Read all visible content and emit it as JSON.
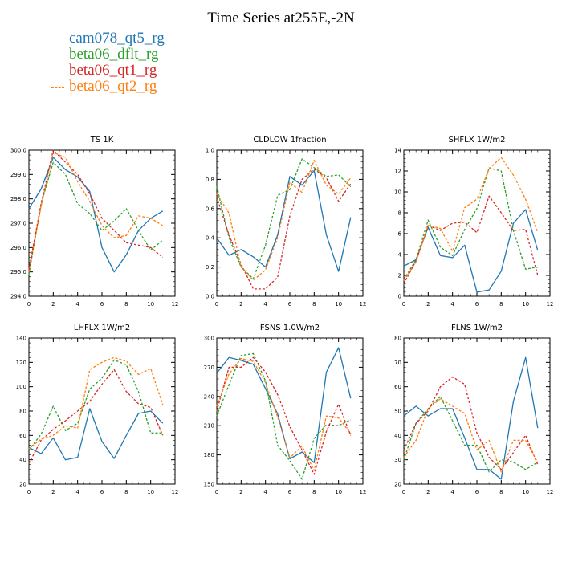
{
  "title": "Time Series at255E,-2N",
  "legend": [
    {
      "label": "cam078_qt5_rg",
      "color": "#1f77b4",
      "dashed": false
    },
    {
      "label": "beta06_dflt_rg",
      "color": "#2ca02c",
      "dashed": true
    },
    {
      "label": "beta06_qt1_rg",
      "color": "#d62728",
      "dashed": true
    },
    {
      "label": "beta06_qt2_rg",
      "color": "#ff7f0e",
      "dashed": true
    }
  ],
  "chart_data": [
    {
      "type": "line",
      "title": "TS   1K",
      "x": [
        0,
        1,
        2,
        3,
        4,
        5,
        6,
        7,
        8,
        9,
        10,
        11
      ],
      "xlim": [
        0,
        12
      ],
      "xticks": [
        0,
        2,
        4,
        6,
        8,
        10,
        12
      ],
      "ylim": [
        294.0,
        300.0
      ],
      "yticks": [
        "294.0",
        "295.0",
        "296.0",
        "297.0",
        "298.0",
        "299.0",
        "300.0"
      ],
      "series": [
        {
          "name": "cam078_qt5_rg",
          "values": [
            297.6,
            298.4,
            299.7,
            299.2,
            298.9,
            298.3,
            296.0,
            295.0,
            295.7,
            296.7,
            297.2,
            297.5
          ]
        },
        {
          "name": "beta06_dflt_rg",
          "values": [
            294.9,
            297.8,
            299.5,
            299.0,
            297.8,
            297.4,
            296.7,
            297.1,
            297.6,
            296.7,
            295.9,
            296.3
          ]
        },
        {
          "name": "beta06_qt1_rg",
          "values": [
            295.1,
            297.8,
            300.0,
            299.5,
            299.0,
            298.2,
            297.2,
            296.7,
            296.2,
            296.1,
            296.0,
            295.6
          ]
        },
        {
          "name": "beta06_qt2_rg",
          "values": [
            295.0,
            297.7,
            299.9,
            299.7,
            298.7,
            297.9,
            296.9,
            296.4,
            296.5,
            297.3,
            297.2,
            296.9
          ]
        }
      ]
    },
    {
      "type": "line",
      "title": "CLDLOW   1fraction",
      "x": [
        0,
        1,
        2,
        3,
        4,
        5,
        6,
        7,
        8,
        9,
        10,
        11
      ],
      "xlim": [
        0,
        12
      ],
      "xticks": [
        0,
        2,
        4,
        6,
        8,
        10,
        12
      ],
      "ylim": [
        0.0,
        1.0
      ],
      "yticks": [
        "0.0",
        "0.2",
        "0.4",
        "0.6",
        "0.8",
        "1.0"
      ],
      "series": [
        {
          "name": "cam078_qt5_rg",
          "values": [
            0.4,
            0.28,
            0.32,
            0.27,
            0.2,
            0.42,
            0.82,
            0.76,
            0.86,
            0.42,
            0.17,
            0.54
          ]
        },
        {
          "name": "beta06_dflt_rg",
          "values": [
            0.75,
            0.4,
            0.2,
            0.12,
            0.35,
            0.69,
            0.73,
            0.94,
            0.88,
            0.82,
            0.83,
            0.75
          ]
        },
        {
          "name": "beta06_qt1_rg",
          "values": [
            0.68,
            0.42,
            0.22,
            0.05,
            0.05,
            0.13,
            0.55,
            0.8,
            0.87,
            0.81,
            0.65,
            0.77
          ]
        },
        {
          "name": "beta06_qt2_rg",
          "values": [
            0.7,
            0.57,
            0.2,
            0.11,
            0.18,
            0.4,
            0.78,
            0.71,
            0.93,
            0.76,
            0.7,
            0.81
          ]
        }
      ]
    },
    {
      "type": "line",
      "title": "SHFLX   1W/m2",
      "x": [
        0,
        1,
        2,
        3,
        4,
        5,
        6,
        7,
        8,
        9,
        10,
        11
      ],
      "xlim": [
        0,
        12
      ],
      "xticks": [
        0,
        2,
        4,
        6,
        8,
        10,
        12
      ],
      "ylim": [
        0,
        14
      ],
      "yticks": [
        "0",
        "2",
        "4",
        "6",
        "8",
        "10",
        "12",
        "14"
      ],
      "series": [
        {
          "name": "cam078_qt5_rg",
          "values": [
            2.9,
            3.5,
            6.6,
            3.9,
            3.7,
            4.9,
            0.4,
            0.6,
            2.4,
            7.0,
            8.3,
            4.4
          ]
        },
        {
          "name": "beta06_dflt_rg",
          "values": [
            1.6,
            3.5,
            7.3,
            4.7,
            3.9,
            6.4,
            8.4,
            12.3,
            12.0,
            6.3,
            2.6,
            2.8
          ]
        },
        {
          "name": "beta06_qt1_rg",
          "values": [
            1.2,
            3.4,
            6.8,
            6.3,
            7.0,
            7.1,
            6.1,
            9.6,
            8.0,
            6.3,
            6.4,
            2.0
          ]
        },
        {
          "name": "beta06_qt2_rg",
          "values": [
            1.5,
            3.3,
            6.8,
            6.5,
            4.3,
            8.5,
            9.3,
            12.2,
            13.3,
            11.6,
            9.3,
            6.1
          ]
        }
      ]
    },
    {
      "type": "line",
      "title": "LHFLX   1W/m2",
      "x": [
        0,
        1,
        2,
        3,
        4,
        5,
        6,
        7,
        8,
        9,
        10,
        11
      ],
      "xlim": [
        0,
        12
      ],
      "xticks": [
        0,
        2,
        4,
        6,
        8,
        10,
        12
      ],
      "ylim": [
        20,
        140
      ],
      "yticks": [
        "20",
        "40",
        "60",
        "80",
        "100",
        "120",
        "140"
      ],
      "series": [
        {
          "name": "cam078_qt5_rg",
          "values": [
            50,
            45,
            58,
            40,
            42,
            82,
            55,
            41,
            60,
            78,
            80,
            70
          ]
        },
        {
          "name": "beta06_dflt_rg",
          "values": [
            48,
            61,
            84,
            64,
            70,
            98,
            107,
            122,
            118,
            96,
            62,
            62
          ]
        },
        {
          "name": "beta06_qt1_rg",
          "values": [
            37,
            56,
            65,
            72,
            80,
            88,
            102,
            114,
            96,
            86,
            83,
            60
          ]
        },
        {
          "name": "beta06_qt2_rg",
          "values": [
            49,
            57,
            60,
            68,
            66,
            114,
            120,
            124,
            121,
            110,
            115,
            85
          ]
        }
      ]
    },
    {
      "type": "line",
      "title": "FSNS   1.0W/m2",
      "x": [
        0,
        1,
        2,
        3,
        4,
        5,
        6,
        7,
        8,
        9,
        10,
        11
      ],
      "xlim": [
        0,
        12
      ],
      "xticks": [
        0,
        2,
        4,
        6,
        8,
        10,
        12
      ],
      "ylim": [
        150,
        300
      ],
      "yticks": [
        "150",
        "180",
        "210",
        "240",
        "270",
        "300"
      ],
      "series": [
        {
          "name": "cam078_qt5_rg",
          "values": [
            264,
            280,
            277,
            273,
            248,
            222,
            176,
            183,
            172,
            265,
            290,
            238
          ]
        },
        {
          "name": "beta06_dflt_rg",
          "values": [
            220,
            252,
            282,
            284,
            256,
            190,
            174,
            155,
            197,
            211,
            210,
            216
          ]
        },
        {
          "name": "beta06_qt1_rg",
          "values": [
            225,
            270,
            270,
            280,
            265,
            242,
            209,
            185,
            160,
            204,
            232,
            200
          ]
        },
        {
          "name": "beta06_qt2_rg",
          "values": [
            230,
            263,
            279,
            276,
            254,
            219,
            177,
            189,
            164,
            220,
            218,
            202
          ]
        }
      ]
    },
    {
      "type": "line",
      "title": "FLNS   1W/m2",
      "x": [
        0,
        1,
        2,
        3,
        4,
        5,
        6,
        7,
        8,
        9,
        10,
        11
      ],
      "xlim": [
        0,
        12
      ],
      "xticks": [
        0,
        2,
        4,
        6,
        8,
        10,
        12
      ],
      "ylim": [
        20,
        80
      ],
      "yticks": [
        "20",
        "30",
        "40",
        "50",
        "60",
        "70",
        "80"
      ],
      "series": [
        {
          "name": "cam078_qt5_rg",
          "values": [
            48,
            52,
            48,
            51,
            51,
            39,
            26,
            26,
            22,
            54,
            72,
            43
          ]
        },
        {
          "name": "beta06_dflt_rg",
          "values": [
            30,
            45,
            51,
            56,
            46,
            36,
            36,
            25,
            30,
            29,
            26,
            29
          ]
        },
        {
          "name": "beta06_qt1_rg",
          "values": [
            34,
            45,
            50,
            60,
            64,
            61,
            41,
            31,
            26,
            33,
            40,
            28
          ]
        },
        {
          "name": "beta06_qt2_rg",
          "values": [
            31,
            38,
            51,
            55,
            52,
            49,
            34,
            38,
            25,
            38,
            38,
            29
          ]
        }
      ]
    }
  ]
}
